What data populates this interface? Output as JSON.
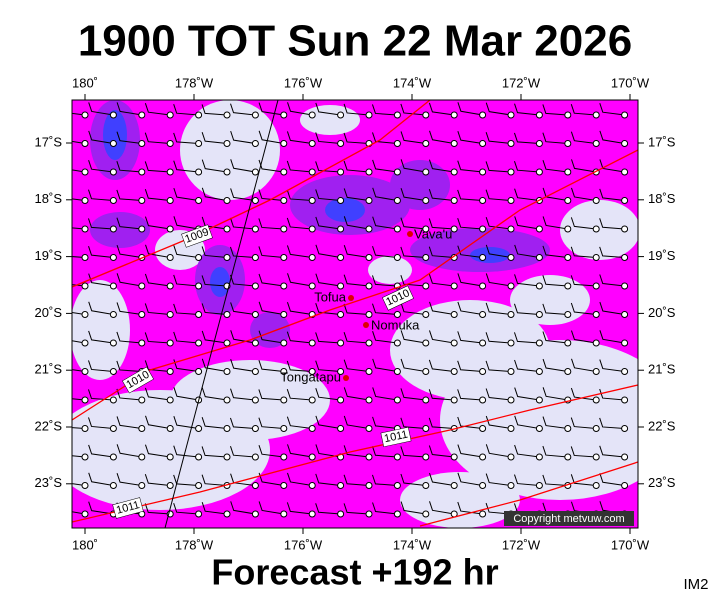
{
  "header": {
    "title": "1900 TOT Sun 22 Mar 2026"
  },
  "axes": {
    "lon_labels": [
      "180˚",
      "178˚W",
      "176˚W",
      "174˚W",
      "172˚W",
      "170˚W"
    ],
    "lat_labels": [
      "17˚S",
      "18˚S",
      "19˚S",
      "20˚S",
      "21˚S",
      "22˚S",
      "23˚S"
    ]
  },
  "isobars": [
    "1009",
    "1010",
    "1010",
    "1011",
    "1011"
  ],
  "places": [
    "Vava'u",
    "Tofua",
    "Nomuka",
    "Tongatapu"
  ],
  "copyright": "Copyright metvuw.com",
  "footer": {
    "forecast": "Forecast +192 hr",
    "code": "IM2"
  }
}
